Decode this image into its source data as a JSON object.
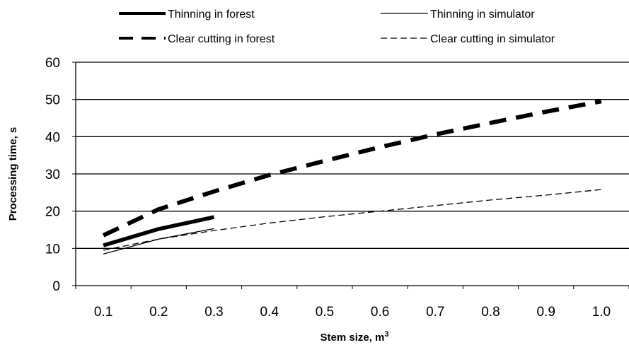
{
  "chart_data": {
    "type": "line",
    "title": "",
    "xlabel": "Stem size, m",
    "xlabel_superscript": "3",
    "ylabel": "Processing time, s",
    "categories": [
      "0.1",
      "0.2",
      "0.3",
      "0.4",
      "0.5",
      "0.6",
      "0.7",
      "0.8",
      "0.9",
      "1.0"
    ],
    "ylim": [
      0,
      60
    ],
    "yticks": [
      0,
      10,
      20,
      30,
      40,
      50,
      60
    ],
    "grid": "horizontal",
    "legend_position": "top",
    "series": [
      {
        "name": "Thinning in forest",
        "style": "thick-solid",
        "x": [
          0.1,
          0.2,
          0.3
        ],
        "values": [
          10.8,
          15.2,
          18.4
        ]
      },
      {
        "name": "Thinning in simulator",
        "style": "thin-solid",
        "x": [
          0.1,
          0.2,
          0.3
        ],
        "values": [
          8.5,
          12.5,
          15.3
        ]
      },
      {
        "name": "Clear cutting in forest",
        "style": "thick-dashed",
        "x": [
          0.1,
          0.2,
          0.3,
          0.4,
          0.5,
          0.6,
          0.7,
          0.8,
          0.9,
          1.0
        ],
        "values": [
          13.5,
          20.5,
          25.3,
          29.7,
          33.5,
          37.2,
          40.6,
          43.7,
          46.7,
          49.5
        ]
      },
      {
        "name": "Clear cutting in simulator",
        "style": "thin-dashed",
        "x": [
          0.1,
          0.2,
          0.3,
          0.4,
          0.5,
          0.6,
          0.7,
          0.8,
          0.9,
          1.0
        ],
        "values": [
          9.5,
          12.5,
          14.8,
          16.8,
          18.5,
          20.0,
          21.5,
          23.0,
          24.3,
          25.8
        ]
      }
    ],
    "colors": {
      "line": "#000000",
      "grid": "#000000",
      "background": "#ffffff"
    }
  }
}
